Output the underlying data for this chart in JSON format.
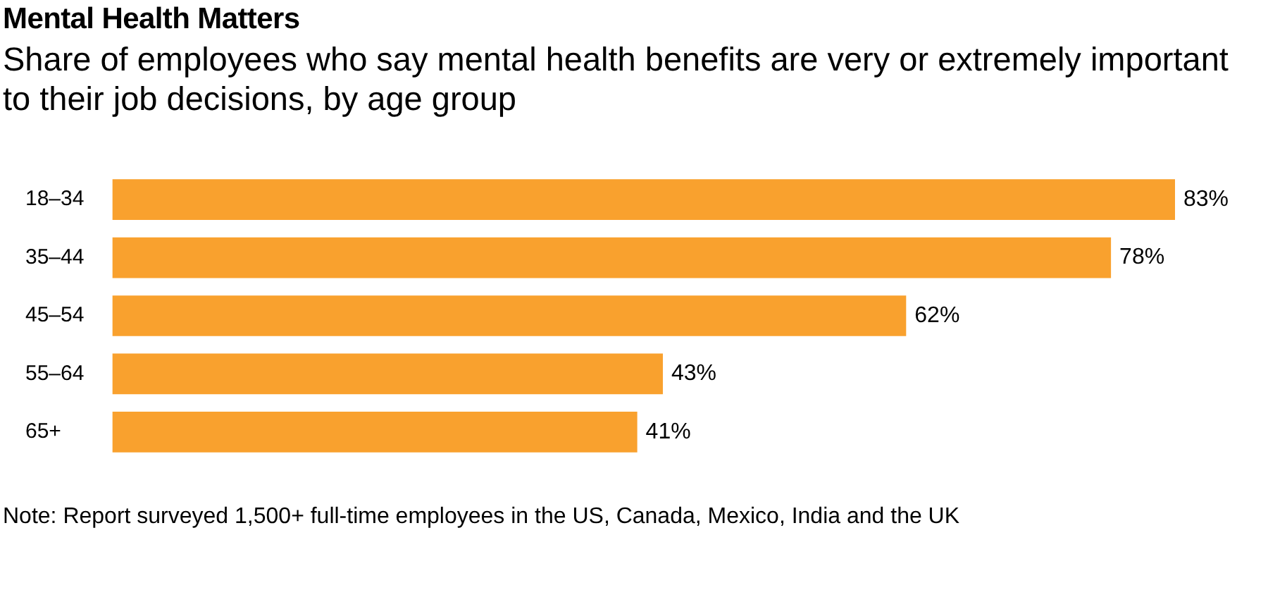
{
  "chart_data": {
    "type": "bar",
    "orientation": "horizontal",
    "title": "Mental Health Matters",
    "subtitle": "Share of employees who say mental health benefits are very or extremely important to their job decisions, by age group",
    "categories": [
      "18–34",
      "35–44",
      "45–54",
      "55–64",
      "65+"
    ],
    "values": [
      83,
      78,
      62,
      43,
      41
    ],
    "color": "#f9a12e",
    "value_labels": [
      "83%",
      "78%",
      "62%",
      "43%",
      "41%"
    ],
    "annotations": [
      "Note: Report surveyed 1,500+ full-time employees in the US, Canada, Mexico, India and the UK"
    ]
  }
}
